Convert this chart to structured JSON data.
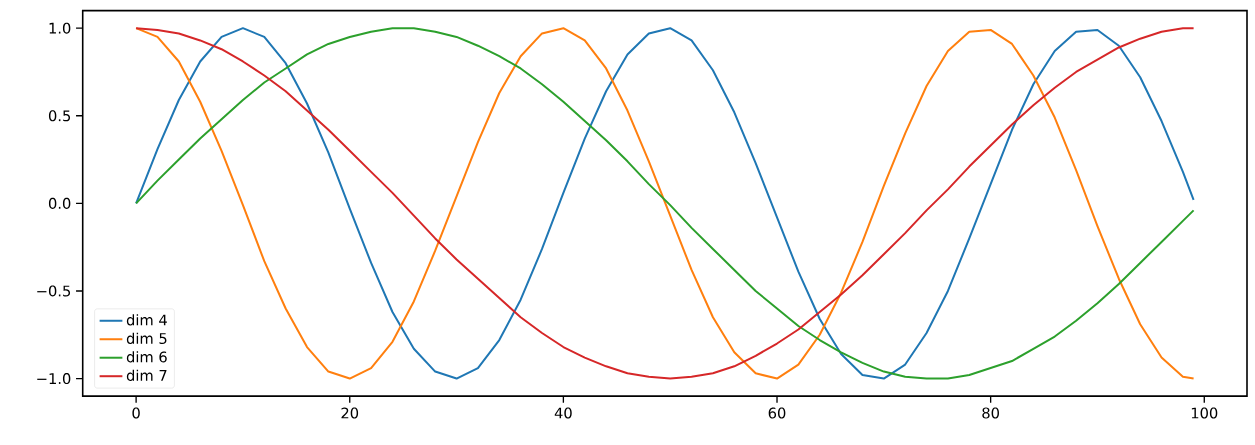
{
  "chart_data": {
    "type": "line",
    "x": [
      0,
      2,
      4,
      6,
      8,
      10,
      12,
      14,
      16,
      18,
      20,
      22,
      24,
      26,
      28,
      30,
      32,
      34,
      36,
      38,
      40,
      42,
      44,
      46,
      48,
      50,
      52,
      54,
      56,
      58,
      60,
      62,
      64,
      66,
      68,
      70,
      72,
      74,
      76,
      78,
      80,
      82,
      84,
      86,
      88,
      90,
      92,
      94,
      96,
      98,
      99
    ],
    "series": [
      {
        "name": "dim 4",
        "color": "#1f77b4",
        "values": [
          0,
          0.31,
          0.59,
          0.81,
          0.95,
          1.0,
          0.95,
          0.8,
          0.57,
          0.29,
          -0.03,
          -0.34,
          -0.62,
          -0.83,
          -0.96,
          -1.0,
          -0.94,
          -0.78,
          -0.55,
          -0.26,
          0.06,
          0.37,
          0.64,
          0.85,
          0.97,
          1.0,
          0.93,
          0.76,
          0.52,
          0.23,
          -0.08,
          -0.39,
          -0.66,
          -0.86,
          -0.98,
          -1.0,
          -0.92,
          -0.74,
          -0.5,
          -0.2,
          0.11,
          0.42,
          0.68,
          0.87,
          0.98,
          0.99,
          0.9,
          0.72,
          0.47,
          0.18,
          0.02
        ]
      },
      {
        "name": "dim 5",
        "color": "#ff7f0e",
        "values": [
          1.0,
          0.95,
          0.81,
          0.58,
          0.3,
          -0.01,
          -0.33,
          -0.6,
          -0.82,
          -0.96,
          -1.0,
          -0.94,
          -0.79,
          -0.56,
          -0.27,
          0.04,
          0.35,
          0.63,
          0.84,
          0.97,
          1.0,
          0.93,
          0.77,
          0.53,
          0.24,
          -0.07,
          -0.38,
          -0.65,
          -0.85,
          -0.97,
          -1.0,
          -0.92,
          -0.75,
          -0.51,
          -0.22,
          0.1,
          0.4,
          0.67,
          0.87,
          0.98,
          0.99,
          0.91,
          0.73,
          0.49,
          0.19,
          -0.13,
          -0.43,
          -0.69,
          -0.88,
          -0.99,
          -1.0
        ]
      },
      {
        "name": "dim 6",
        "color": "#2ca02c",
        "values": [
          0,
          0.13,
          0.25,
          0.37,
          0.48,
          0.59,
          0.69,
          0.77,
          0.85,
          0.91,
          0.95,
          0.98,
          1.0,
          1.0,
          0.98,
          0.95,
          0.9,
          0.84,
          0.77,
          0.68,
          0.58,
          0.47,
          0.36,
          0.24,
          0.11,
          -0.01,
          -0.14,
          -0.26,
          -0.38,
          -0.5,
          -0.6,
          -0.7,
          -0.78,
          -0.85,
          -0.91,
          -0.96,
          -0.99,
          -1.0,
          -1.0,
          -0.98,
          -0.94,
          -0.9,
          -0.83,
          -0.76,
          -0.67,
          -0.57,
          -0.46,
          -0.34,
          -0.22,
          -0.1,
          -0.04
        ]
      },
      {
        "name": "dim 7",
        "color": "#d62728",
        "values": [
          1.0,
          0.99,
          0.97,
          0.93,
          0.88,
          0.81,
          0.73,
          0.64,
          0.53,
          0.42,
          0.3,
          0.18,
          0.06,
          -0.07,
          -0.2,
          -0.32,
          -0.43,
          -0.54,
          -0.65,
          -0.74,
          -0.82,
          -0.88,
          -0.93,
          -0.97,
          -0.99,
          -1.0,
          -0.99,
          -0.97,
          -0.93,
          -0.87,
          -0.8,
          -0.72,
          -0.62,
          -0.52,
          -0.41,
          -0.29,
          -0.17,
          -0.04,
          0.08,
          0.21,
          0.33,
          0.45,
          0.56,
          0.66,
          0.75,
          0.82,
          0.89,
          0.94,
          0.98,
          1.0,
          1.0
        ]
      }
    ],
    "xlim": [
      -5,
      104
    ],
    "ylim": [
      -1.1,
      1.1
    ],
    "xticks": [
      0,
      20,
      40,
      60,
      80,
      100
    ],
    "yticks": [
      {
        "value": -1,
        "label": "−1.0"
      },
      {
        "value": -0.5,
        "label": "−0.5"
      },
      {
        "value": 0,
        "label": "0.0"
      },
      {
        "value": 0.5,
        "label": "0.5"
      },
      {
        "value": 1,
        "label": "1.0"
      }
    ],
    "legend": "bottom left",
    "grid": false
  }
}
